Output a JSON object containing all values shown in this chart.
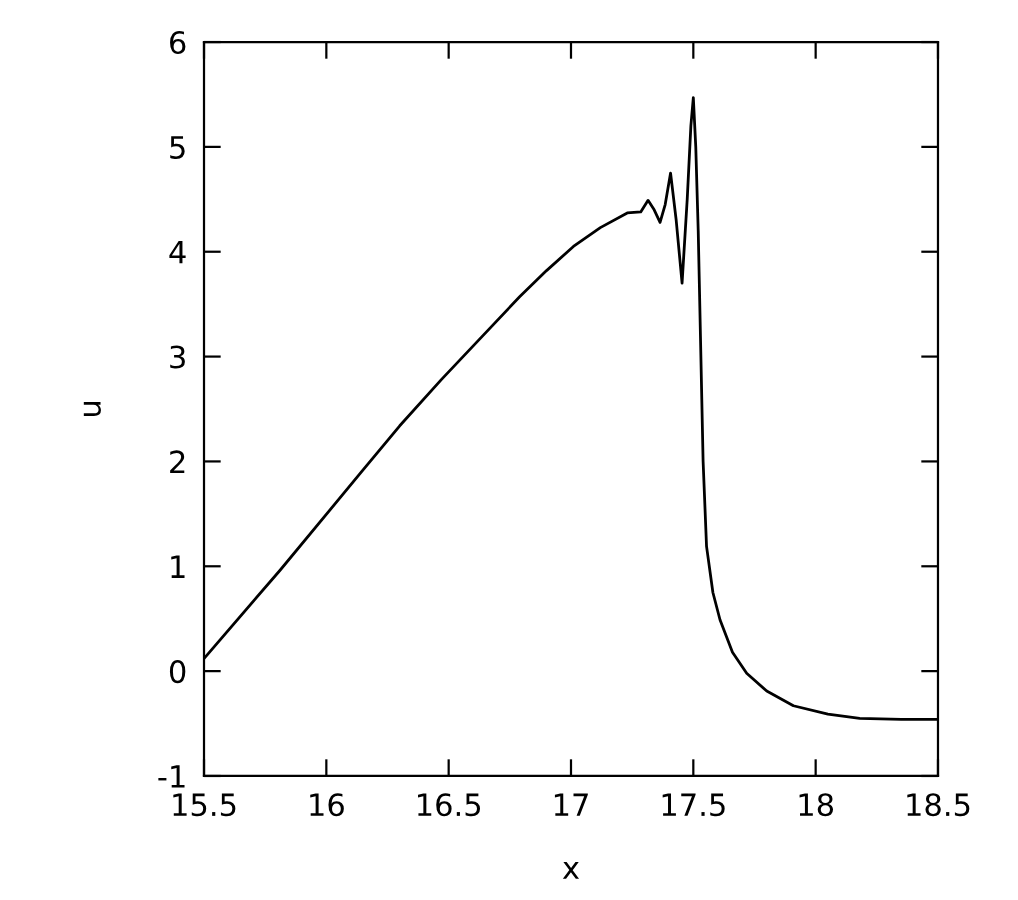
{
  "chart_data": {
    "type": "line",
    "xlabel": "x",
    "ylabel": "u",
    "xlim": [
      15.5,
      18.5
    ],
    "ylim": [
      -1,
      6
    ],
    "xticks": [
      15.5,
      16,
      16.5,
      17,
      17.5,
      18,
      18.5
    ],
    "yticks": [
      -1,
      0,
      1,
      2,
      3,
      4,
      5,
      6
    ],
    "grid": false,
    "legend": false,
    "series": [
      {
        "color": "#000000",
        "x": [
          15.5,
          15.81,
          16.14,
          16.3,
          16.47,
          16.64,
          16.79,
          16.9,
          17.01,
          17.12,
          17.23,
          17.285,
          17.315,
          17.34,
          17.364,
          17.385,
          17.407,
          17.43,
          17.454,
          17.475,
          17.49,
          17.5,
          17.51,
          17.52,
          17.53,
          17.54,
          17.554,
          17.58,
          17.609,
          17.66,
          17.718,
          17.8,
          17.909,
          18.05,
          18.18,
          18.35,
          18.5
        ],
        "values": [
          0.12,
          0.96,
          1.89,
          2.34,
          2.78,
          3.2,
          3.57,
          3.82,
          4.05,
          4.23,
          4.37,
          4.38,
          4.49,
          4.4,
          4.28,
          4.45,
          4.75,
          4.3,
          3.7,
          4.5,
          5.2,
          5.47,
          5.0,
          4.2,
          3.1,
          2.0,
          1.19,
          0.75,
          0.49,
          0.18,
          -0.02,
          -0.19,
          -0.33,
          -0.41,
          -0.45,
          -0.46,
          -0.46
        ]
      }
    ]
  }
}
